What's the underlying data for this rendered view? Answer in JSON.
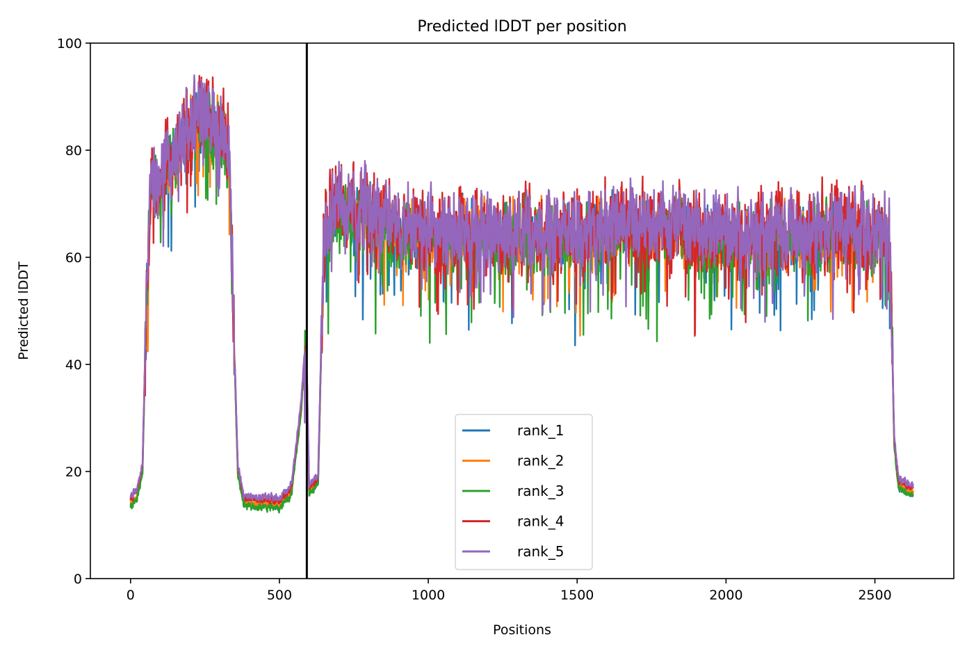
{
  "chart_data": {
    "type": "line",
    "title": "Predicted lDDT per position",
    "xlabel": "Positions",
    "ylabel": "Predicted lDDT",
    "xlim": [
      -135,
      2765
    ],
    "ylim": [
      0,
      100
    ],
    "xticks": [
      0,
      500,
      1000,
      1500,
      2000,
      2500
    ],
    "yticks": [
      0,
      20,
      40,
      60,
      80,
      100
    ],
    "grid": false,
    "legend_position": "lower center",
    "annotations": [
      {
        "type": "vertical-line",
        "x": 592,
        "color": "#000000"
      }
    ],
    "num_positions": 2630,
    "colors": {
      "rank_1": "#1f77b4",
      "rank_2": "#ff7f0e",
      "rank_3": "#2ca02c",
      "rank_4": "#d62728",
      "rank_5": "#9467bd"
    },
    "profile": [
      {
        "x": 0,
        "y": 14
      },
      {
        "x": 20,
        "y": 15
      },
      {
        "x": 40,
        "y": 20
      },
      {
        "x": 55,
        "y": 55
      },
      {
        "x": 70,
        "y": 74
      },
      {
        "x": 100,
        "y": 73
      },
      {
        "x": 150,
        "y": 80
      },
      {
        "x": 200,
        "y": 84
      },
      {
        "x": 250,
        "y": 86
      },
      {
        "x": 300,
        "y": 83
      },
      {
        "x": 330,
        "y": 80
      },
      {
        "x": 345,
        "y": 50
      },
      {
        "x": 360,
        "y": 20
      },
      {
        "x": 380,
        "y": 14
      },
      {
        "x": 500,
        "y": 13.5
      },
      {
        "x": 540,
        "y": 16
      },
      {
        "x": 570,
        "y": 30
      },
      {
        "x": 590,
        "y": 44
      },
      {
        "x": 600,
        "y": 16
      },
      {
        "x": 630,
        "y": 18
      },
      {
        "x": 650,
        "y": 66
      },
      {
        "x": 700,
        "y": 69
      },
      {
        "x": 1000,
        "y": 64
      },
      {
        "x": 1500,
        "y": 64
      },
      {
        "x": 1700,
        "y": 66
      },
      {
        "x": 2000,
        "y": 63
      },
      {
        "x": 2400,
        "y": 65
      },
      {
        "x": 2550,
        "y": 63
      },
      {
        "x": 2565,
        "y": 25
      },
      {
        "x": 2580,
        "y": 17
      },
      {
        "x": 2630,
        "y": 16
      }
    ],
    "series": [
      {
        "name": "rank_1",
        "noise": 5,
        "offset": 0.0,
        "seed": 11
      },
      {
        "name": "rank_2",
        "noise": 5,
        "offset": 0.2,
        "seed": 23
      },
      {
        "name": "rank_3",
        "noise": 5.5,
        "offset": -0.4,
        "seed": 37
      },
      {
        "name": "rank_4",
        "noise": 6,
        "offset": 1.0,
        "seed": 41
      },
      {
        "name": "rank_5",
        "noise": 5.5,
        "offset": 1.5,
        "seed": 53
      }
    ]
  }
}
